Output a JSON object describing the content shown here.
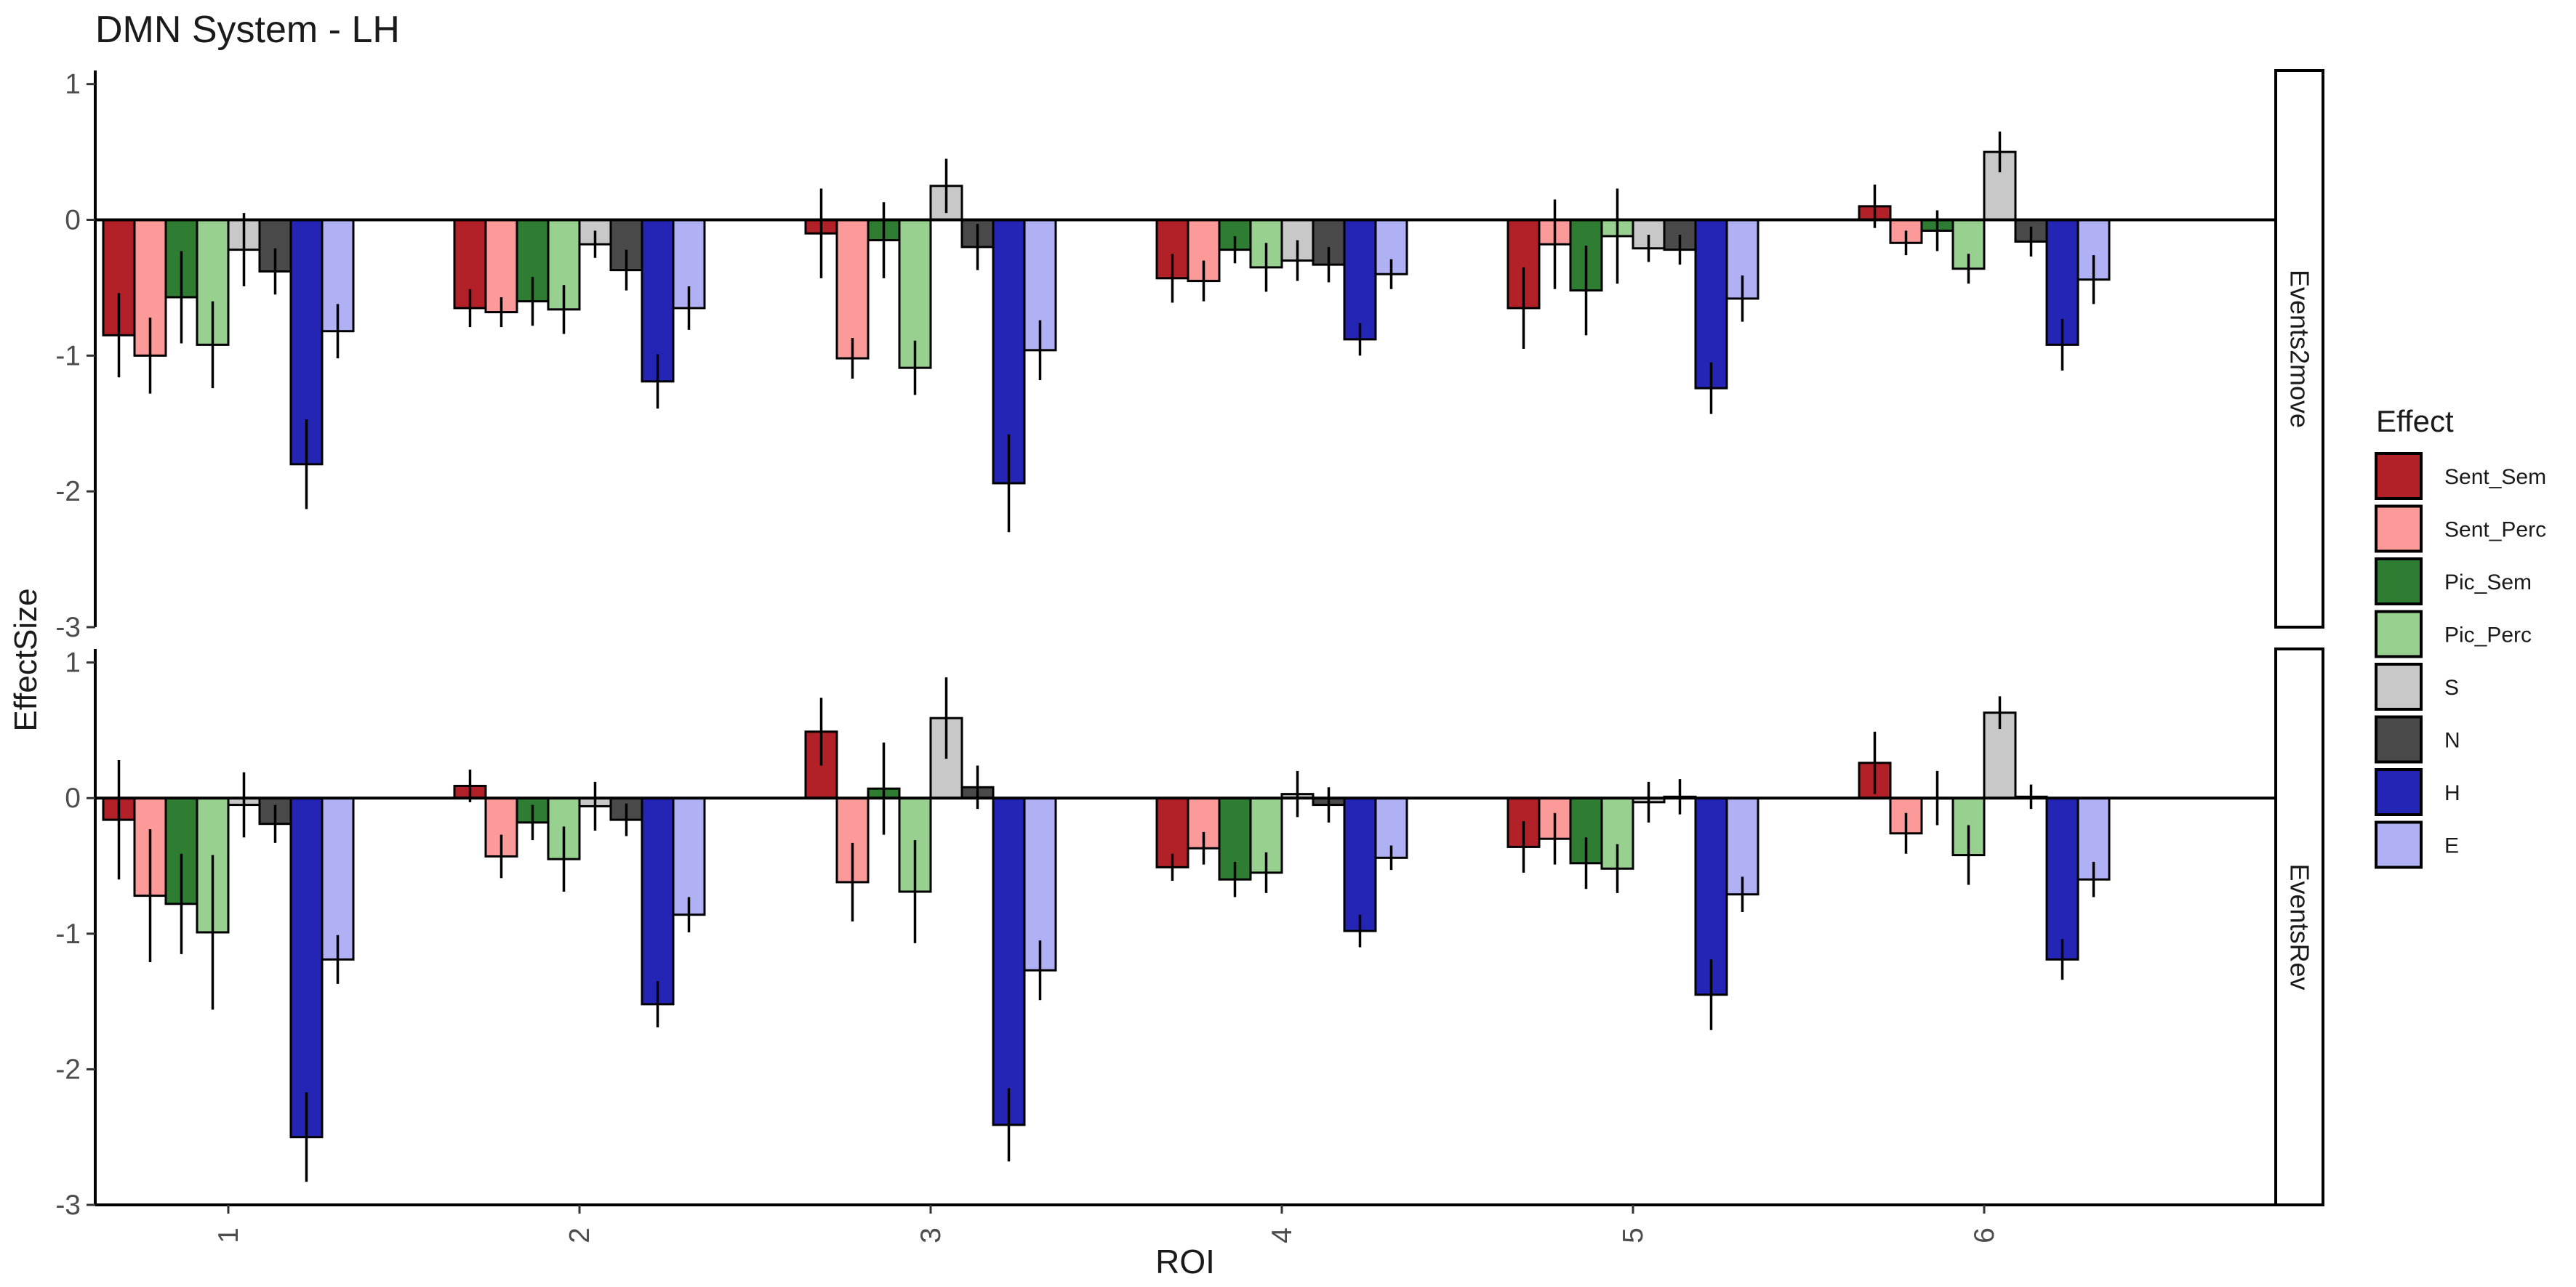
{
  "chart_data": {
    "type": "bar",
    "title": "DMN System - LH",
    "xlabel": "ROI",
    "ylabel": "EffectSize",
    "categories": [
      "1",
      "2",
      "3",
      "4",
      "5",
      "6"
    ],
    "ylim": [
      -3,
      1.1
    ],
    "yticks": [
      1,
      0,
      -1,
      -2,
      -3
    ],
    "grid": false,
    "legend": {
      "title": "Effect",
      "placement": "right"
    },
    "series": [
      {
        "name": "Sent_Sem",
        "color": "#b22028"
      },
      {
        "name": "Sent_Perc",
        "color": "#fb9a99"
      },
      {
        "name": "Pic_Sem",
        "color": "#2e7d32"
      },
      {
        "name": "Pic_Perc",
        "color": "#98d08f"
      },
      {
        "name": "S",
        "color": "#c8c8c8"
      },
      {
        "name": "N",
        "color": "#4a4a4a"
      },
      {
        "name": "H",
        "color": "#2525b5"
      },
      {
        "name": "E",
        "color": "#b0b0f5"
      }
    ],
    "panels": [
      {
        "strip": "Events2move",
        "values": [
          [
            -0.85,
            -0.65,
            -0.1,
            -0.43,
            -0.65,
            0.1
          ],
          [
            -1.0,
            -0.68,
            -1.02,
            -0.45,
            -0.18,
            -0.17
          ],
          [
            -0.57,
            -0.6,
            -0.15,
            -0.22,
            -0.52,
            -0.08
          ],
          [
            -0.92,
            -0.66,
            -1.09,
            -0.35,
            -0.12,
            -0.36
          ],
          [
            -0.22,
            -0.18,
            0.25,
            -0.3,
            -0.21,
            0.5
          ],
          [
            -0.38,
            -0.37,
            -0.2,
            -0.33,
            -0.22,
            -0.16
          ],
          [
            -1.8,
            -1.19,
            -1.94,
            -0.88,
            -1.24,
            -0.92
          ],
          [
            -0.82,
            -0.65,
            -0.96,
            -0.4,
            -0.58,
            -0.44
          ]
        ],
        "errors": [
          [
            0.31,
            0.14,
            0.33,
            0.18,
            0.3,
            0.16
          ],
          [
            0.28,
            0.11,
            0.15,
            0.15,
            0.33,
            0.09
          ],
          [
            0.34,
            0.18,
            0.28,
            0.1,
            0.33,
            0.15
          ],
          [
            0.32,
            0.18,
            0.2,
            0.18,
            0.35,
            0.11
          ],
          [
            0.27,
            0.1,
            0.2,
            0.15,
            0.1,
            0.15
          ],
          [
            0.17,
            0.15,
            0.17,
            0.13,
            0.11,
            0.11
          ],
          [
            0.33,
            0.2,
            0.36,
            0.12,
            0.19,
            0.19
          ],
          [
            0.2,
            0.16,
            0.22,
            0.11,
            0.17,
            0.18
          ]
        ]
      },
      {
        "strip": "EventsRev",
        "values": [
          [
            -0.16,
            0.09,
            0.49,
            -0.51,
            -0.36,
            0.26
          ],
          [
            -0.72,
            -0.43,
            -0.62,
            -0.37,
            -0.3,
            -0.26
          ],
          [
            -0.78,
            -0.18,
            0.07,
            -0.6,
            -0.48,
            0.0
          ],
          [
            -0.99,
            -0.45,
            -0.69,
            -0.55,
            -0.52,
            -0.42
          ],
          [
            -0.05,
            -0.06,
            0.59,
            0.03,
            -0.03,
            0.63
          ],
          [
            -0.19,
            -0.16,
            0.08,
            -0.05,
            0.01,
            0.01
          ],
          [
            -2.5,
            -1.52,
            -2.41,
            -0.98,
            -1.45,
            -1.19
          ],
          [
            -1.19,
            -0.86,
            -1.27,
            -0.44,
            -0.71,
            -0.6
          ]
        ],
        "errors": [
          [
            0.44,
            0.12,
            0.25,
            0.1,
            0.19,
            0.23
          ],
          [
            0.49,
            0.16,
            0.29,
            0.12,
            0.19,
            0.15
          ],
          [
            0.37,
            0.13,
            0.34,
            0.13,
            0.19,
            0.2
          ],
          [
            0.57,
            0.24,
            0.38,
            0.15,
            0.18,
            0.22
          ],
          [
            0.24,
            0.18,
            0.3,
            0.17,
            0.15,
            0.12
          ],
          [
            0.14,
            0.12,
            0.16,
            0.13,
            0.13,
            0.09
          ],
          [
            0.33,
            0.17,
            0.27,
            0.12,
            0.26,
            0.15
          ],
          [
            0.18,
            0.13,
            0.22,
            0.09,
            0.13,
            0.13
          ]
        ]
      }
    ]
  }
}
